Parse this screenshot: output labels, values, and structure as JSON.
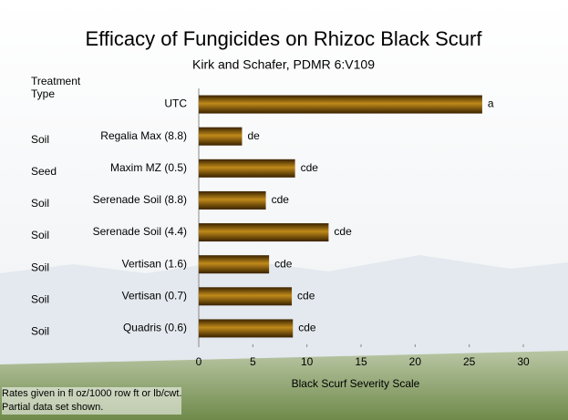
{
  "chart_data": {
    "type": "barh",
    "title": "Efficacy of Fungicides on Rhizoc Black Scurf",
    "subtitle": "Kirk and Schafer, PDMR 6:V109",
    "type_header": "Treatment Type",
    "categories": [
      "UTC",
      "Regalia Max (8.8)",
      "Maxim MZ (0.5)",
      "Serenade Soil (8.8)",
      "Serenade Soil (4.4)",
      "Vertisan (1.6)",
      "Vertisan (0.7)",
      "Quadris (0.6)"
    ],
    "treatment_types": [
      null,
      "Soil",
      "Seed",
      "Soil",
      "Soil",
      "Soil",
      "Soil",
      "Soil"
    ],
    "values": [
      26.2,
      4.0,
      8.9,
      6.2,
      12.0,
      6.5,
      8.6,
      8.7
    ],
    "letters": [
      "a",
      "de",
      "cde",
      "cde",
      "cde",
      "cde",
      "cde",
      "cde"
    ],
    "color": "#c08a1a",
    "xlim": [
      0,
      30
    ],
    "xticks": [
      0,
      5,
      10,
      15,
      20,
      25,
      30
    ],
    "xlabel": "Black Scurf Severity Scale",
    "grid": false,
    "notes": [
      "Rates given in fl oz/1000 row ft or lb/cwt.",
      "Partial data set shown."
    ]
  }
}
